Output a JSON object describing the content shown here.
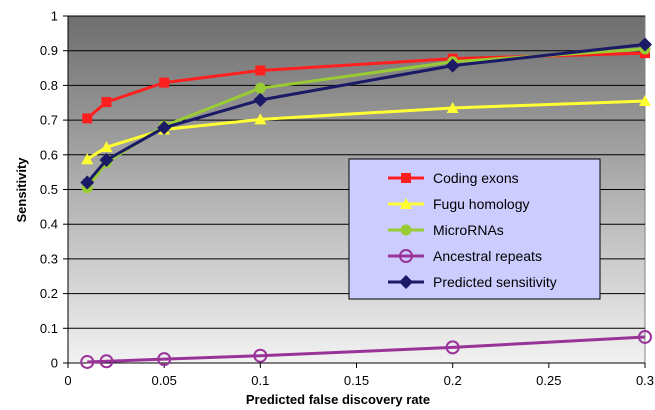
{
  "chart_data": {
    "type": "line",
    "title": "",
    "xlabel": "Predicted false discovery rate",
    "ylabel": "Sensitivity",
    "xlim": [
      0,
      0.3
    ],
    "ylim": [
      0,
      1
    ],
    "x_ticks": [
      "0",
      "0.05",
      "0.1",
      "0.15",
      "0.2",
      "0.25",
      "0.3"
    ],
    "y_ticks": [
      "0",
      "0.1",
      "0.2",
      "0.3",
      "0.4",
      "0.5",
      "0.6",
      "0.7",
      "0.8",
      "0.9",
      "1"
    ],
    "grid": "horizontal",
    "legend_position": "right",
    "series": [
      {
        "name": "Coding exons",
        "color": "#ff1f1f",
        "marker": "square",
        "x": [
          0.01,
          0.02,
          0.05,
          0.1,
          0.2,
          0.3
        ],
        "y": [
          0.705,
          0.752,
          0.808,
          0.843,
          0.877,
          0.893
        ]
      },
      {
        "name": "Fugu homology",
        "color": "#ffff33",
        "marker": "triangle",
        "x": [
          0.01,
          0.02,
          0.05,
          0.1,
          0.2,
          0.3
        ],
        "y": [
          0.587,
          0.622,
          0.673,
          0.702,
          0.735,
          0.755
        ]
      },
      {
        "name": "MicroRNAs",
        "color": "#99cc33",
        "marker": "circle",
        "x": [
          0.01,
          0.02,
          0.05,
          0.1,
          0.2,
          0.3
        ],
        "y": [
          0.505,
          0.578,
          0.683,
          0.792,
          0.868,
          0.905
        ]
      },
      {
        "name": "Ancestral repeats",
        "color": "#993399",
        "marker": "hollow-circle",
        "x": [
          0.01,
          0.02,
          0.05,
          0.1,
          0.2,
          0.3
        ],
        "y": [
          0.003,
          0.005,
          0.011,
          0.021,
          0.045,
          0.075
        ]
      },
      {
        "name": "Predicted sensitivity",
        "color": "#1a1a66",
        "marker": "diamond",
        "x": [
          0.01,
          0.02,
          0.05,
          0.1,
          0.2,
          0.3
        ],
        "y": [
          0.52,
          0.585,
          0.678,
          0.758,
          0.857,
          0.918
        ]
      }
    ]
  }
}
